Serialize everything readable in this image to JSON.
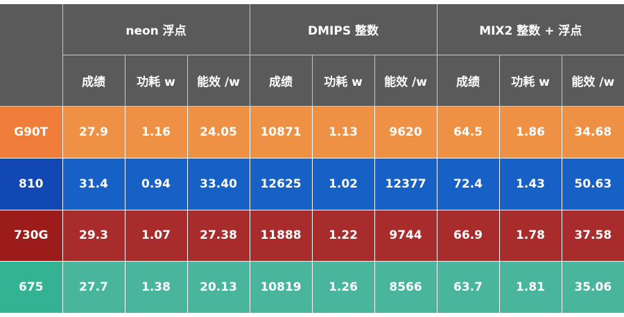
{
  "chart_data": {
    "type": "table",
    "groups": [
      "neon 浮点",
      "DMIPS 整数",
      "MIX2 整数 + 浮点"
    ],
    "subheaders": [
      "成绩",
      "功耗 w",
      "能效 /w"
    ],
    "rows": [
      {
        "name": "G90T",
        "name_color": "#f07d3a",
        "row_color": "#ee9144",
        "values": [
          "27.9",
          "1.16",
          "24.05",
          "10871",
          "1.13",
          "9620",
          "64.5",
          "1.86",
          "34.68"
        ]
      },
      {
        "name": "810",
        "name_color": "#1148b4",
        "row_color": "#1660c6",
        "values": [
          "31.4",
          "0.94",
          "33.40",
          "12625",
          "1.02",
          "12377",
          "72.4",
          "1.43",
          "50.63"
        ]
      },
      {
        "name": "730G",
        "name_color": "#9c1c1c",
        "row_color": "#a92c2c",
        "values": [
          "29.3",
          "1.07",
          "27.38",
          "11888",
          "1.22",
          "9744",
          "66.9",
          "1.78",
          "37.58"
        ]
      },
      {
        "name": "675",
        "name_color": "#34b394",
        "row_color": "#48b59c",
        "values": [
          "27.7",
          "1.38",
          "20.13",
          "10819",
          "1.26",
          "8566",
          "63.7",
          "1.81",
          "35.06"
        ]
      }
    ]
  }
}
